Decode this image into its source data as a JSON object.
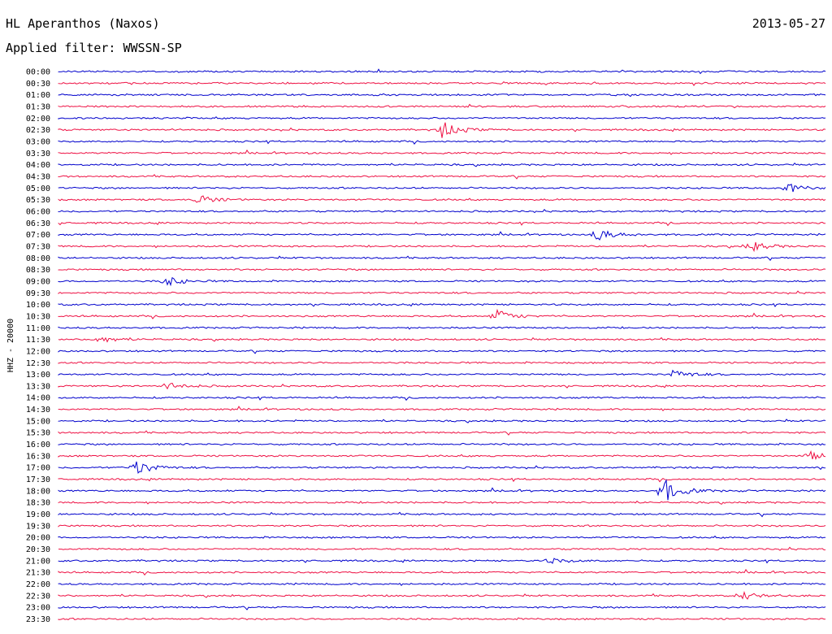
{
  "header": {
    "station": "HL Aperanthos (Naxos)",
    "date": "2013-05-27",
    "filter": "Applied filter: WWSSN-SP"
  },
  "chart_data": {
    "type": "line",
    "ylabel": "HHZ - 20000",
    "rows": [
      "00:00",
      "00:30",
      "01:00",
      "01:30",
      "02:00",
      "02:30",
      "03:00",
      "03:30",
      "04:00",
      "04:30",
      "05:00",
      "05:30",
      "06:00",
      "06:30",
      "07:00",
      "07:30",
      "08:00",
      "08:30",
      "09:00",
      "09:30",
      "10:00",
      "10:30",
      "11:00",
      "11:30",
      "12:00",
      "12:30",
      "13:00",
      "13:30",
      "14:00",
      "14:30",
      "15:00",
      "15:30",
      "16:00",
      "16:30",
      "17:00",
      "17:30",
      "18:00",
      "18:30",
      "19:00",
      "19:30",
      "20:00",
      "20:30",
      "21:00",
      "21:30",
      "22:00",
      "22:30",
      "23:00",
      "23:30"
    ],
    "colors": [
      "#0000cc",
      "#ee1144"
    ],
    "grid": false,
    "events": [
      {
        "row": 5,
        "t": 0.5,
        "amp": 10
      },
      {
        "row": 14,
        "t": 0.7,
        "amp": 8
      },
      {
        "row": 15,
        "t": 0.9,
        "amp": 7
      },
      {
        "row": 36,
        "t": 0.79,
        "amp": 14
      },
      {
        "row": 34,
        "t": 0.1,
        "amp": 10
      },
      {
        "row": 21,
        "t": 0.57,
        "amp": 8
      },
      {
        "row": 18,
        "t": 0.14,
        "amp": 6
      },
      {
        "row": 26,
        "t": 0.8,
        "amp": 6
      },
      {
        "row": 45,
        "t": 0.89,
        "amp": 5
      },
      {
        "row": 11,
        "t": 0.18,
        "amp": 6
      },
      {
        "row": 10,
        "t": 0.95,
        "amp": 6
      },
      {
        "row": 23,
        "t": 0.05,
        "amp": 5
      },
      {
        "row": 27,
        "t": 0.14,
        "amp": 5
      },
      {
        "row": 42,
        "t": 0.64,
        "amp": 4
      },
      {
        "row": 33,
        "t": 0.98,
        "amp": 5
      }
    ]
  }
}
